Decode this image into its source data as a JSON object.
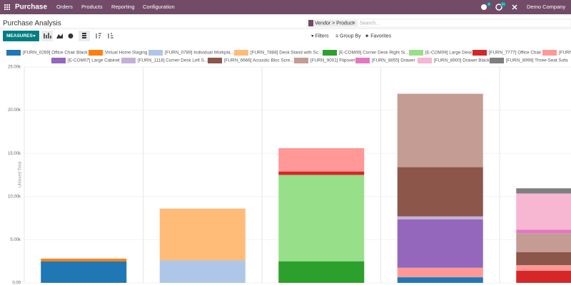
{
  "navbar": {
    "app": "Purchase",
    "menus": [
      "Orders",
      "Products",
      "Reporting",
      "Configuration"
    ],
    "badges": [
      "5",
      "21"
    ],
    "company": "Demo Company"
  },
  "header": {
    "title": "Purchase Analysis",
    "facet": "Vendor > Product",
    "search_placeholder": "Search...",
    "measures": "MEASURES",
    "filters": "Filters",
    "group_by": "Group By",
    "favorites": "Favorites"
  },
  "chart_data": {
    "type": "stacked_bar",
    "y_label": "Untaxed Total",
    "categories": [
      null,
      null,
      null,
      null,
      null
    ],
    "ylim": [
      0,
      25000
    ],
    "yticks": [
      {
        "value": 0,
        "label": "0.00"
      },
      {
        "value": 5000,
        "label": "5.00k"
      },
      {
        "value": 10000,
        "label": "10.00k"
      },
      {
        "value": 15000,
        "label": "15.00k"
      },
      {
        "value": 20000,
        "label": "20.00k"
      },
      {
        "value": 25000,
        "label": "25.00k"
      }
    ],
    "series": [
      {
        "name": "[FURN_0269] Office Chair Black",
        "color": "#1f77b4",
        "values": [
          2500,
          null,
          null,
          650,
          null
        ]
      },
      {
        "name": "Virtual Home Staging",
        "color": "#ff7f0e",
        "values": [
          300,
          null,
          null,
          null,
          null
        ]
      },
      {
        "name": "[FURN_0789] Individual Workpla...",
        "color": "#aec7e8",
        "values": [
          null,
          2600,
          null,
          null,
          null
        ]
      },
      {
        "name": "[FURN_7888] Desk Stand with Sc...",
        "color": "#ffbb78",
        "values": [
          null,
          6000,
          null,
          null,
          null
        ]
      },
      {
        "name": "[E-COM06] Corner Desk Right Si...",
        "color": "#2ca02c",
        "values": [
          null,
          null,
          2500,
          null,
          null
        ]
      },
      {
        "name": "[E-COM09] Large Desk",
        "color": "#98df8a",
        "values": [
          null,
          null,
          10000,
          null,
          null
        ]
      },
      {
        "name": "[FURN_7777] Office Chair",
        "color": "#d62728",
        "values": [
          null,
          null,
          400,
          null,
          1400
        ]
      },
      {
        "name": "[FURN",
        "color": "#ff9896",
        "values": [
          null,
          null,
          2700,
          1100,
          650
        ]
      },
      {
        "name": "[E-COM07] Large Cabinet",
        "color": "#9467bd",
        "values": [
          null,
          null,
          null,
          5600,
          null
        ]
      },
      {
        "name": "[FURN_1118] Corner Desk Left S...",
        "color": "#c5b0d5",
        "values": [
          null,
          null,
          null,
          350,
          null
        ]
      },
      {
        "name": "[FURN_6666] Acoustic Bloc Scre...",
        "color": "#8c564b",
        "values": [
          null,
          null,
          null,
          5700,
          1500
        ]
      },
      {
        "name": "[FURN_9001] Flipover",
        "color": "#c49c94",
        "values": [
          null,
          null,
          null,
          8500,
          2200
        ]
      },
      {
        "name": "[FURN_8855] Drawer",
        "color": "#e377c2",
        "values": [
          null,
          null,
          null,
          null,
          400
        ]
      },
      {
        "name": "[FURN_8900] Drawer Black",
        "color": "#f7b6d2",
        "values": [
          null,
          null,
          null,
          null,
          4200
        ]
      },
      {
        "name": "[FURN_8999] Three-Seat Sofa",
        "color": "#7f7f7f",
        "values": [
          null,
          null,
          null,
          null,
          600
        ]
      }
    ]
  }
}
